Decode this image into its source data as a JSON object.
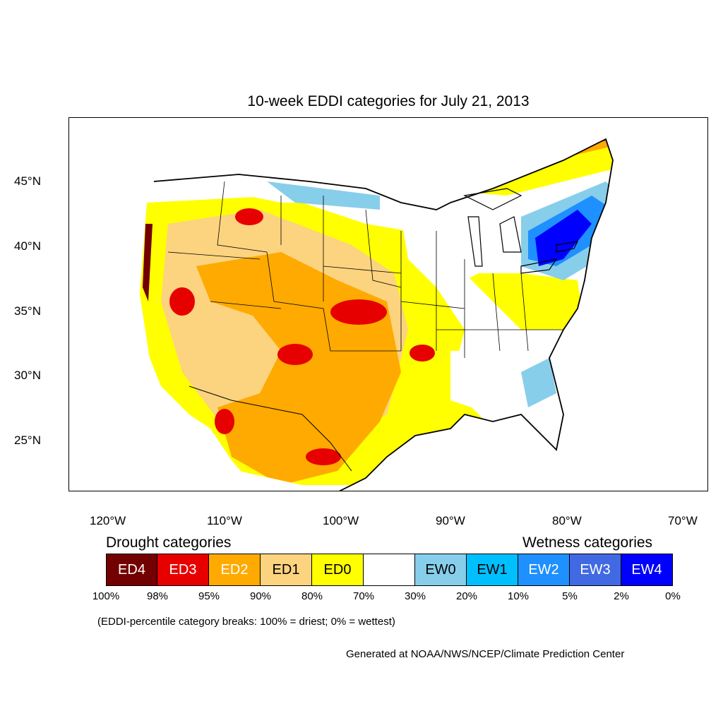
{
  "title": "10-week EDDI categories for July 21, 2013",
  "lat_labels": [
    "45°N",
    "40°N",
    "35°N",
    "30°N",
    "25°N"
  ],
  "lon_labels": [
    "120°W",
    "110°W",
    "100°W",
    "90°W",
    "80°W",
    "70°W"
  ],
  "legend": {
    "drought_heading": "Drought categories",
    "wetness_heading": "Wetness categories",
    "categories": [
      {
        "label": "ED4",
        "color": "#730000",
        "text_color": "#ffffff"
      },
      {
        "label": "ED3",
        "color": "#e60000",
        "text_color": "#ffffff"
      },
      {
        "label": "ED2",
        "color": "#ffaa00",
        "text_color": "#ffffff"
      },
      {
        "label": "ED1",
        "color": "#fcd37f",
        "text_color": "#000000"
      },
      {
        "label": "ED0",
        "color": "#ffff00",
        "text_color": "#000000"
      },
      {
        "label": "",
        "color": "#ffffff",
        "text_color": "#000000"
      },
      {
        "label": "EW0",
        "color": "#87ceeb",
        "text_color": "#000000"
      },
      {
        "label": "EW1",
        "color": "#00bfff",
        "text_color": "#000000"
      },
      {
        "label": "EW2",
        "color": "#1e90ff",
        "text_color": "#ffffff"
      },
      {
        "label": "EW3",
        "color": "#4169e1",
        "text_color": "#ffffff"
      },
      {
        "label": "EW4",
        "color": "#0000ff",
        "text_color": "#ffffff"
      }
    ],
    "percentiles": [
      "100%",
      "98%",
      "95%",
      "90%",
      "80%",
      "70%",
      "30%",
      "20%",
      "10%",
      "5%",
      "2%",
      "0%"
    ]
  },
  "note": "(EDDI-percentile category breaks: 100% = driest; 0% = wettest)",
  "credit": "Generated at NOAA/NWS/NCEP/Climate Prediction Center"
}
